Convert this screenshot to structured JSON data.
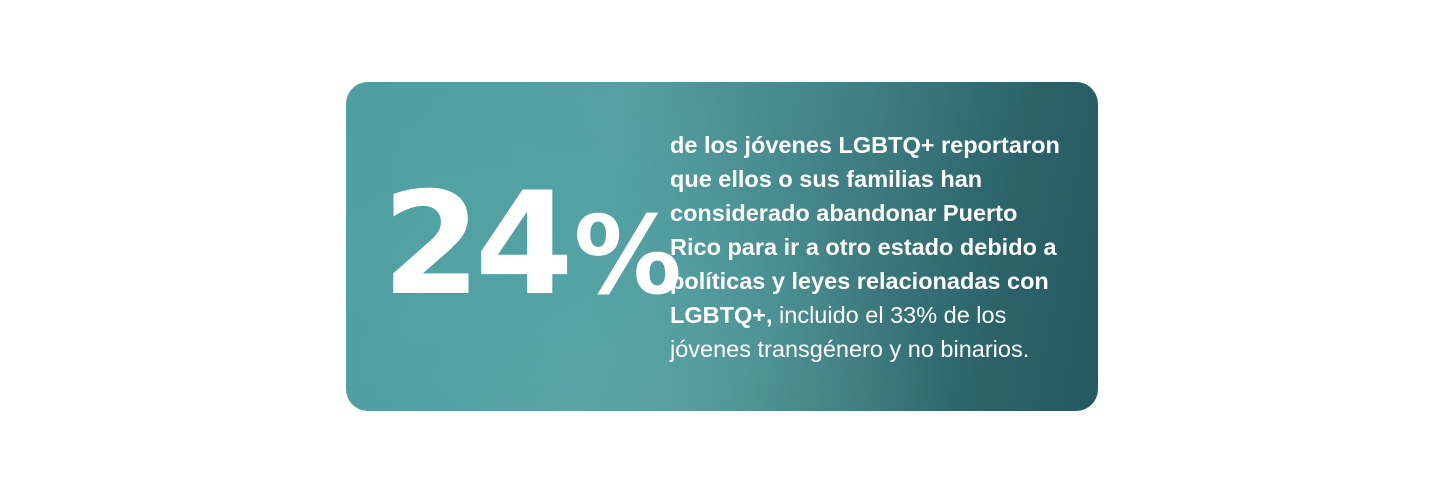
{
  "stat_card": {
    "number": "24",
    "percent_sign": "%",
    "description_bold": "de los jóvenes LGBTQ+ reportaron que ellos o sus familias han considerado abandonar Puerto Rico para ir a otro estado debido a políticas y leyes relacionadas con LGBTQ+,",
    "description_regular": " incluido el 33% de los jóvenes transgénero y no binarios.",
    "colors": {
      "gradient_start": "#4e9ea0",
      "gradient_end": "#245b62",
      "text": "#ffffff",
      "page_background": "#ffffff"
    }
  }
}
